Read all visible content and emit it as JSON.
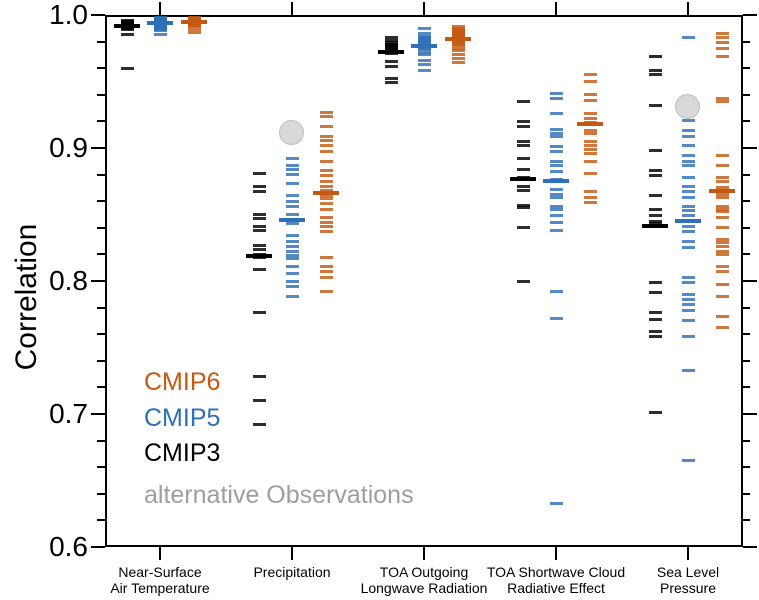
{
  "legend": {
    "items": [
      {
        "label": "CMIP6",
        "color": "#c45911"
      },
      {
        "label": "CMIP5",
        "color": "#2e6fb7"
      },
      {
        "label": "CMIP3",
        "color": "#000000"
      },
      {
        "label": "alternative Observations",
        "color": "#9e9e9e"
      }
    ]
  },
  "chart_data": {
    "type": "strip",
    "title": "",
    "ylabel": "Correlation",
    "xlabel": "",
    "ylim": [
      0.6,
      1.0
    ],
    "yticks": [
      "1.0",
      "0.9",
      "0.8",
      "0.7",
      "0.6"
    ],
    "ytick_values": [
      1.0,
      0.9,
      0.8,
      0.7,
      0.6
    ],
    "minor_tick_step": 0.02,
    "grid": false,
    "legend_position": "lower-left-inside",
    "categories": [
      {
        "line1": "Near-Surface",
        "line2": "Air Temperature"
      },
      {
        "line1": "Precipitation",
        "line2": ""
      },
      {
        "line1": "TOA Outgoing",
        "line2": "Longwave Radiation"
      },
      {
        "line1": "TOA Shortwave Cloud",
        "line2": "Radiative Effect"
      },
      {
        "line1": "Sea Level",
        "line2": "Pressure"
      }
    ],
    "series": [
      {
        "name": "CMIP3",
        "color": "#000000",
        "ensemble_means": [
          0.992,
          0.819,
          0.972,
          0.877,
          0.841
        ],
        "values": [
          [
            0.996,
            0.995,
            0.994,
            0.994,
            0.993,
            0.993,
            0.992,
            0.992,
            0.991,
            0.991,
            0.99,
            0.99,
            0.989,
            0.985,
            0.96
          ],
          [
            0.881,
            0.871,
            0.867,
            0.85,
            0.847,
            0.841,
            0.838,
            0.827,
            0.824,
            0.82,
            0.818,
            0.809,
            0.776,
            0.728,
            0.71,
            0.692
          ],
          [
            0.983,
            0.981,
            0.979,
            0.978,
            0.977,
            0.976,
            0.975,
            0.974,
            0.971,
            0.965,
            0.961,
            0.952,
            0.949
          ],
          [
            0.935,
            0.92,
            0.916,
            0.905,
            0.902,
            0.892,
            0.884,
            0.878,
            0.871,
            0.868,
            0.857,
            0.855,
            0.84,
            0.8
          ],
          [
            0.969,
            0.958,
            0.955,
            0.932,
            0.898,
            0.883,
            0.879,
            0.864,
            0.854,
            0.849,
            0.845,
            0.843,
            0.799,
            0.791,
            0.776,
            0.771,
            0.762,
            0.758,
            0.701
          ]
        ]
      },
      {
        "name": "CMIP5",
        "color": "#2e6fb7",
        "ensemble_means": [
          0.994,
          0.846,
          0.977,
          0.875,
          0.845
        ],
        "values": [
          [
            0.998,
            0.997,
            0.997,
            0.996,
            0.996,
            0.995,
            0.995,
            0.995,
            0.994,
            0.994,
            0.993,
            0.993,
            0.992,
            0.992,
            0.991,
            0.991,
            0.99,
            0.99,
            0.989,
            0.988,
            0.985
          ],
          [
            0.892,
            0.887,
            0.884,
            0.88,
            0.873,
            0.864,
            0.86,
            0.856,
            0.85,
            0.843,
            0.834,
            0.83,
            0.826,
            0.822,
            0.819,
            0.817,
            0.811,
            0.806,
            0.8,
            0.796,
            0.788
          ],
          [
            0.99,
            0.986,
            0.984,
            0.983,
            0.982,
            0.981,
            0.98,
            0.979,
            0.978,
            0.977,
            0.976,
            0.975,
            0.974,
            0.972,
            0.97,
            0.966,
            0.963,
            0.958
          ],
          [
            0.941,
            0.937,
            0.926,
            0.914,
            0.911,
            0.909,
            0.901,
            0.897,
            0.89,
            0.887,
            0.882,
            0.876,
            0.869,
            0.865,
            0.863,
            0.856,
            0.854,
            0.849,
            0.844,
            0.838,
            0.792,
            0.772,
            0.633
          ],
          [
            0.983,
            0.921,
            0.913,
            0.909,
            0.902,
            0.894,
            0.89,
            0.887,
            0.878,
            0.871,
            0.867,
            0.863,
            0.856,
            0.853,
            0.849,
            0.841,
            0.837,
            0.83,
            0.825,
            0.803,
            0.799,
            0.79,
            0.786,
            0.782,
            0.778,
            0.77,
            0.758,
            0.733,
            0.665
          ]
        ]
      },
      {
        "name": "CMIP6",
        "color": "#c45911",
        "ensemble_means": [
          0.995,
          0.866,
          0.982,
          0.918,
          0.868
        ],
        "values": [
          [
            0.998,
            0.997,
            0.997,
            0.996,
            0.996,
            0.996,
            0.995,
            0.995,
            0.995,
            0.994,
            0.994,
            0.994,
            0.993,
            0.993,
            0.992,
            0.992,
            0.991,
            0.989,
            0.987
          ],
          [
            0.927,
            0.924,
            0.916,
            0.909,
            0.906,
            0.902,
            0.897,
            0.89,
            0.883,
            0.879,
            0.875,
            0.871,
            0.868,
            0.864,
            0.862,
            0.858,
            0.854,
            0.848,
            0.844,
            0.841,
            0.837,
            0.818,
            0.811,
            0.807,
            0.803,
            0.792
          ],
          [
            0.991,
            0.99,
            0.989,
            0.988,
            0.987,
            0.987,
            0.986,
            0.986,
            0.985,
            0.985,
            0.984,
            0.984,
            0.983,
            0.983,
            0.982,
            0.982,
            0.981,
            0.98,
            0.979,
            0.978,
            0.977,
            0.975,
            0.973,
            0.97,
            0.967,
            0.964
          ],
          [
            0.955,
            0.95,
            0.94,
            0.936,
            0.926,
            0.922,
            0.919,
            0.913,
            0.911,
            0.905,
            0.902,
            0.899,
            0.896,
            0.89,
            0.881,
            0.867,
            0.863,
            0.859
          ],
          [
            0.986,
            0.983,
            0.979,
            0.975,
            0.969,
            0.937,
            0.935,
            0.894,
            0.887,
            0.878,
            0.875,
            0.87,
            0.865,
            0.863,
            0.856,
            0.854,
            0.852,
            0.848,
            0.84,
            0.831,
            0.829,
            0.826,
            0.822,
            0.82,
            0.811,
            0.807,
            0.797,
            0.788,
            0.773,
            0.765
          ]
        ]
      }
    ],
    "alternative_observations": {
      "label": "alternative Observations",
      "circle_fill": "#d9d9d9",
      "circle_edge": "#bdbdbd",
      "points": [
        {
          "category_index": 1,
          "value": 0.911
        },
        {
          "category_index": 4,
          "value": 0.931
        }
      ]
    }
  }
}
